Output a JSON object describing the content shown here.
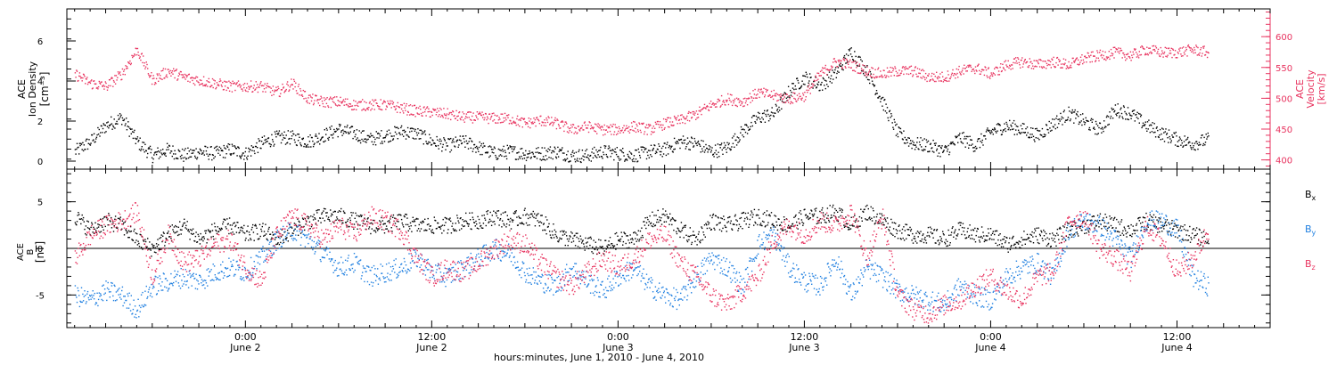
{
  "colors": {
    "density": "#000000",
    "velocity": "#e8335f",
    "bx": "#000000",
    "by": "#1f7fe0",
    "bz": "#e8335f",
    "frame": "#000000"
  },
  "xaxis": {
    "tick_time_labels": [
      "0:00",
      "12:00",
      "0:00",
      "12:00",
      "0:00",
      "12:00"
    ],
    "tick_date_labels": [
      "June 2",
      "June 2",
      "June 3",
      "June 3",
      "June 4",
      "June 4"
    ],
    "title": "hours:minutes, June  1, 2010 - June  4, 2010"
  },
  "top_panel": {
    "left_label_line1": "ACE",
    "left_label_line2": "Ion Density",
    "left_units": "[cm⁻³]",
    "right_label_line1": "ACE",
    "right_label_line2": "Velocity",
    "right_units": "[km/s]",
    "left_ticks": [
      "0",
      "2",
      "4",
      "6"
    ],
    "right_ticks": [
      "400",
      "450",
      "500",
      "550",
      "600"
    ]
  },
  "bottom_panel": {
    "label_line1": "ACE",
    "label_line2": "B",
    "units": "[nT]",
    "ticks": [
      "-5",
      "0",
      "5"
    ],
    "legend": [
      {
        "key": "bx",
        "base": "B",
        "sub": "x"
      },
      {
        "key": "by",
        "base": "B",
        "sub": "y"
      },
      {
        "key": "bz",
        "base": "B",
        "sub": "z"
      }
    ]
  },
  "chart_data": [
    {
      "type": "scatter",
      "title": "",
      "xlabel": "hours:minutes, June  1, 2010 - June  4, 2010",
      "x_unit": "hours since 2010-06-01 00:00 UT",
      "xlim": [
        12.5,
        90.0
      ],
      "series": [
        {
          "name": "Ion Density",
          "axis": "left",
          "ylabel": "ACE Ion Density [cm⁻³]",
          "ylim": [
            -0.4,
            7.6
          ],
          "x": [
            13.0,
            14.0,
            15.0,
            16.0,
            17.0,
            18.0,
            19.0,
            20.0,
            21.0,
            22.0,
            23.0,
            24.0,
            25.0,
            26.0,
            27.0,
            28.0,
            29.0,
            30.0,
            31.0,
            32.0,
            33.0,
            34.0,
            35.0,
            36.0,
            37.0,
            38.0,
            39.0,
            40.0,
            41.0,
            42.0,
            43.0,
            44.0,
            45.0,
            46.0,
            47.0,
            48.0,
            49.0,
            50.0,
            51.0,
            52.0,
            53.0,
            54.0,
            55.0,
            56.0,
            57.0,
            58.0,
            59.0,
            60.0,
            61.0,
            62.0,
            63.0,
            64.0,
            65.0,
            66.0,
            67.0,
            68.0,
            69.0,
            70.0,
            71.0,
            72.0,
            73.0,
            74.0,
            75.0,
            76.0,
            77.0,
            78.0,
            79.0,
            80.0,
            81.0,
            82.0,
            83.0,
            84.0,
            85.0,
            86.0
          ],
          "values": [
            0.5,
            1.0,
            1.8,
            2.2,
            1.0,
            0.3,
            0.6,
            0.3,
            0.5,
            0.4,
            0.6,
            0.4,
            0.9,
            1.2,
            1.2,
            1.0,
            1.3,
            1.6,
            1.4,
            1.1,
            1.3,
            1.5,
            1.4,
            1.0,
            0.8,
            1.0,
            0.7,
            0.4,
            0.5,
            0.4,
            0.4,
            0.5,
            0.3,
            0.3,
            0.5,
            0.4,
            0.3,
            0.5,
            0.6,
            1.0,
            0.9,
            0.5,
            0.7,
            1.5,
            2.2,
            2.4,
            3.5,
            4.2,
            3.8,
            4.4,
            5.5,
            4.5,
            3.0,
            1.4,
            0.9,
            0.8,
            0.5,
            1.2,
            0.8,
            1.5,
            1.8,
            1.6,
            1.3,
            1.9,
            2.4,
            2.0,
            1.6,
            2.6,
            2.4,
            1.8,
            1.4,
            1.1,
            0.9,
            1.1
          ]
        },
        {
          "name": "Velocity",
          "axis": "right",
          "ylabel": "ACE Velocity [km/s]",
          "ylim": [
            385,
            645
          ],
          "x": [
            13.0,
            14.0,
            15.0,
            16.0,
            17.0,
            18.0,
            19.0,
            20.0,
            21.0,
            22.0,
            23.0,
            24.0,
            25.0,
            26.0,
            27.0,
            28.0,
            29.0,
            30.0,
            31.0,
            32.0,
            33.0,
            34.0,
            35.0,
            36.0,
            37.0,
            38.0,
            39.0,
            40.0,
            41.0,
            42.0,
            43.0,
            44.0,
            45.0,
            46.0,
            47.0,
            48.0,
            49.0,
            50.0,
            51.0,
            52.0,
            53.0,
            54.0,
            55.0,
            56.0,
            57.0,
            58.0,
            59.0,
            60.0,
            61.0,
            62.0,
            63.0,
            64.0,
            65.0,
            66.0,
            67.0,
            68.0,
            69.0,
            70.0,
            71.0,
            72.0,
            73.0,
            74.0,
            75.0,
            76.0,
            77.0,
            78.0,
            79.0,
            80.0,
            81.0,
            82.0,
            83.0,
            84.0,
            85.0,
            86.0
          ],
          "values": [
            540,
            525,
            520,
            540,
            580,
            530,
            545,
            535,
            530,
            525,
            520,
            520,
            520,
            510,
            525,
            500,
            495,
            495,
            490,
            490,
            490,
            485,
            480,
            478,
            475,
            470,
            470,
            468,
            468,
            460,
            465,
            460,
            450,
            455,
            450,
            450,
            455,
            450,
            460,
            465,
            475,
            490,
            500,
            495,
            510,
            505,
            500,
            505,
            540,
            560,
            555,
            545,
            540,
            545,
            545,
            535,
            535,
            545,
            550,
            540,
            555,
            560,
            555,
            560,
            555,
            565,
            570,
            575,
            570,
            580,
            575,
            575,
            580,
            575
          ]
        }
      ]
    },
    {
      "type": "scatter",
      "title": "",
      "xlabel": "hours:minutes, June  1, 2010 - June  4, 2010",
      "x_unit": "hours since 2010-06-01 00:00 UT",
      "xlim": [
        12.5,
        90.0
      ],
      "ylabel": "ACE B [nT]",
      "ylim": [
        -8.5,
        8.5
      ],
      "reference_line_y": 0,
      "series": [
        {
          "name": "Bx",
          "x": [
            13.0,
            14.0,
            15.0,
            16.0,
            17.0,
            18.0,
            19.0,
            20.0,
            21.0,
            22.0,
            23.0,
            24.0,
            25.0,
            26.0,
            27.0,
            28.0,
            29.0,
            30.0,
            31.0,
            32.0,
            33.0,
            34.0,
            35.0,
            36.0,
            37.0,
            38.0,
            39.0,
            40.0,
            41.0,
            42.0,
            43.0,
            44.0,
            45.0,
            46.0,
            47.0,
            48.0,
            49.0,
            50.0,
            51.0,
            52.0,
            53.0,
            54.0,
            55.0,
            56.0,
            57.0,
            58.0,
            59.0,
            60.0,
            61.0,
            62.0,
            63.0,
            64.0,
            65.0,
            66.0,
            67.0,
            68.0,
            69.0,
            70.0,
            71.0,
            72.0,
            73.0,
            74.0,
            75.0,
            76.0,
            77.0,
            78.0,
            79.0,
            80.0,
            81.0,
            82.0,
            83.0,
            84.0,
            85.0,
            86.0
          ],
          "values": [
            3.5,
            2.0,
            3.0,
            2.5,
            1.0,
            0.0,
            1.5,
            2.5,
            1.0,
            2.0,
            2.5,
            1.5,
            2.0,
            1.0,
            2.0,
            3.0,
            3.5,
            3.5,
            3.0,
            2.5,
            2.5,
            3.0,
            2.5,
            2.5,
            2.5,
            3.0,
            3.0,
            3.5,
            3.0,
            3.5,
            3.0,
            1.5,
            1.0,
            0.5,
            0.0,
            1.0,
            1.0,
            3.0,
            3.5,
            2.0,
            1.0,
            3.0,
            2.5,
            3.0,
            3.5,
            3.0,
            2.5,
            3.5,
            3.5,
            4.0,
            2.5,
            4.0,
            3.0,
            2.0,
            1.5,
            1.5,
            1.0,
            2.0,
            1.5,
            1.5,
            0.5,
            1.0,
            1.5,
            1.0,
            2.0,
            2.5,
            3.0,
            2.5,
            2.0,
            3.0,
            2.5,
            2.0,
            1.5,
            1.0
          ]
        },
        {
          "name": "By",
          "x": [
            13.0,
            14.0,
            15.0,
            16.0,
            17.0,
            18.0,
            19.0,
            20.0,
            21.0,
            22.0,
            23.0,
            24.0,
            25.0,
            26.0,
            27.0,
            28.0,
            29.0,
            30.0,
            31.0,
            32.0,
            33.0,
            34.0,
            35.0,
            36.0,
            37.0,
            38.0,
            39.0,
            40.0,
            41.0,
            42.0,
            43.0,
            44.0,
            45.0,
            46.0,
            47.0,
            48.0,
            49.0,
            50.0,
            51.0,
            52.0,
            53.0,
            54.0,
            55.0,
            56.0,
            57.0,
            58.0,
            59.0,
            60.0,
            61.0,
            62.0,
            63.0,
            64.0,
            65.0,
            66.0,
            67.0,
            68.0,
            69.0,
            70.0,
            71.0,
            72.0,
            73.0,
            74.0,
            75.0,
            76.0,
            77.0,
            78.0,
            79.0,
            80.0,
            81.0,
            82.0,
            83.0,
            84.0,
            85.0,
            86.0
          ],
          "values": [
            -5.0,
            -5.5,
            -4.5,
            -5.0,
            -6.5,
            -4.0,
            -3.5,
            -3.0,
            -3.5,
            -2.5,
            -2.0,
            -2.5,
            -1.0,
            1.0,
            2.0,
            1.0,
            -0.5,
            -2.0,
            -1.5,
            -3.0,
            -2.5,
            -2.0,
            -1.0,
            -2.5,
            -3.0,
            -2.0,
            -1.0,
            0.0,
            -0.5,
            -2.5,
            -3.5,
            -4.0,
            -2.0,
            -3.5,
            -4.5,
            -3.0,
            -2.0,
            -4.0,
            -5.0,
            -5.5,
            -3.0,
            -1.0,
            -2.0,
            -4.0,
            0.5,
            1.5,
            -2.0,
            -3.5,
            -4.0,
            -1.0,
            -5.0,
            -2.0,
            -3.0,
            -4.5,
            -5.0,
            -5.5,
            -6.0,
            -4.0,
            -5.0,
            -5.5,
            -3.0,
            -2.0,
            -1.5,
            -3.0,
            2.0,
            3.0,
            2.5,
            1.0,
            -1.0,
            3.0,
            3.0,
            2.0,
            -3.0,
            -4.0
          ]
        },
        {
          "name": "Bz",
          "x": [
            13.0,
            14.0,
            15.0,
            16.0,
            17.0,
            18.0,
            19.0,
            20.0,
            21.0,
            22.0,
            23.0,
            24.0,
            25.0,
            26.0,
            27.0,
            28.0,
            29.0,
            30.0,
            31.0,
            32.0,
            33.0,
            34.0,
            35.0,
            36.0,
            37.0,
            38.0,
            39.0,
            40.0,
            41.0,
            42.0,
            43.0,
            44.0,
            45.0,
            46.0,
            47.0,
            48.0,
            49.0,
            50.0,
            51.0,
            52.0,
            53.0,
            54.0,
            55.0,
            56.0,
            57.0,
            58.0,
            59.0,
            60.0,
            61.0,
            62.0,
            63.0,
            64.0,
            65.0,
            66.0,
            67.0,
            68.0,
            69.0,
            70.0,
            71.0,
            72.0,
            73.0,
            74.0,
            75.0,
            76.0,
            77.0,
            78.0,
            79.0,
            80.0,
            81.0,
            82.0,
            83.0,
            84.0,
            85.0,
            86.0
          ],
          "values": [
            -1.0,
            1.5,
            2.5,
            3.0,
            4.0,
            -3.0,
            1.5,
            -1.5,
            -1.0,
            0.5,
            1.0,
            -2.0,
            -3.5,
            1.5,
            3.5,
            2.5,
            1.0,
            2.5,
            1.5,
            3.5,
            3.0,
            2.0,
            -1.0,
            -3.0,
            -2.0,
            -2.5,
            -1.5,
            0.0,
            1.0,
            0.5,
            -1.5,
            -3.0,
            -4.0,
            -2.5,
            -1.0,
            -2.0,
            -1.0,
            1.0,
            1.5,
            -1.5,
            -3.0,
            -5.0,
            -6.0,
            -4.5,
            -3.0,
            1.0,
            2.5,
            1.5,
            3.0,
            2.5,
            4.0,
            -1.0,
            3.5,
            -5.0,
            -6.5,
            -7.0,
            -6.0,
            -5.5,
            -4.0,
            -3.0,
            -4.5,
            -5.5,
            -3.0,
            -2.5,
            3.0,
            3.5,
            0.0,
            -1.0,
            -2.5,
            2.5,
            1.0,
            -2.5,
            -1.0,
            2.0
          ]
        }
      ]
    }
  ]
}
